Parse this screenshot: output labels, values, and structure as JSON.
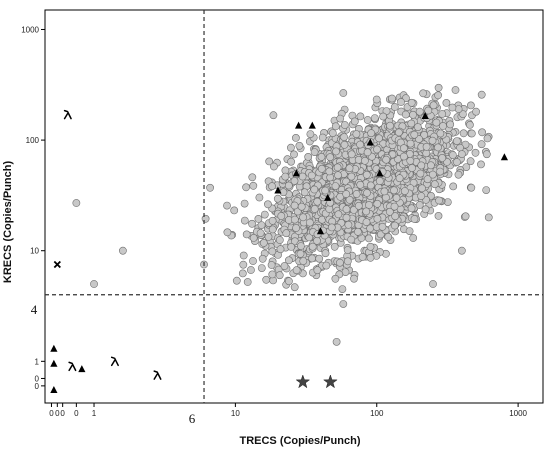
{
  "chart_data": {
    "type": "scatter",
    "xlabel": "TRECS (Copies/Punch)",
    "ylabel": "KRECS (Copies/Punch)",
    "x_scale": "log",
    "y_scale": "log",
    "xlim": [
      0.45,
      1500
    ],
    "ylim": [
      0.42,
      1500
    ],
    "x_ticks": [
      {
        "label": "0",
        "value": 0.5
      },
      {
        "label": "0",
        "value": 0.55
      },
      {
        "label": "0",
        "value": 0.6
      },
      {
        "label": "0",
        "value": 0.75
      },
      {
        "label": "1",
        "value": 1
      },
      {
        "label": "10",
        "value": 10
      },
      {
        "label": "100",
        "value": 100
      },
      {
        "label": "1000",
        "value": 1000
      }
    ],
    "y_ticks": [
      {
        "label": "0",
        "value": 0.6
      },
      {
        "label": "0",
        "value": 0.7
      },
      {
        "label": "1",
        "value": 1
      },
      {
        "label": "10",
        "value": 10
      },
      {
        "label": "100",
        "value": 100
      },
      {
        "label": "1000",
        "value": 1000
      }
    ],
    "thresholds": {
      "x": {
        "value": 6,
        "label": "6"
      },
      "y": {
        "value": 4,
        "label": "4"
      }
    },
    "cloud": {
      "center_x": 80,
      "center_y": 40,
      "sd_log_x": 0.32,
      "sd_log_y": 0.33,
      "correlation": 0.55,
      "n": 2400,
      "clip_x": [
        6,
        620
      ],
      "clip_y": [
        4.2,
        320
      ]
    },
    "series": [
      {
        "marker": "circle",
        "points": [
          [
            0.75,
            27
          ],
          [
            1.6,
            10
          ],
          [
            1,
            5
          ],
          [
            6,
            7.5
          ],
          [
            58,
            3.3
          ],
          [
            52,
            1.5
          ],
          [
            250,
            5
          ],
          [
            400,
            10
          ],
          [
            620,
            20
          ]
        ]
      },
      {
        "marker": "triangle",
        "points": [
          [
            0.52,
            1.3
          ],
          [
            0.52,
            0.95
          ],
          [
            0.52,
            0.55
          ],
          [
            0.82,
            0.85
          ],
          [
            28,
            135
          ],
          [
            35,
            135
          ],
          [
            90,
            95
          ],
          [
            105,
            50
          ],
          [
            220,
            165
          ],
          [
            800,
            70
          ],
          [
            27,
            50
          ],
          [
            20,
            35
          ],
          [
            45,
            30
          ],
          [
            40,
            15
          ]
        ]
      },
      {
        "marker": "lambda",
        "points": [
          [
            0.65,
            170
          ],
          [
            0.7,
            0.9
          ],
          [
            1.4,
            1
          ],
          [
            2.8,
            0.75
          ]
        ]
      },
      {
        "marker": "cross",
        "points": [
          [
            0.55,
            7.5
          ]
        ]
      },
      {
        "marker": "star",
        "points": [
          [
            30,
            0.65
          ],
          [
            47,
            0.65
          ]
        ]
      }
    ]
  }
}
